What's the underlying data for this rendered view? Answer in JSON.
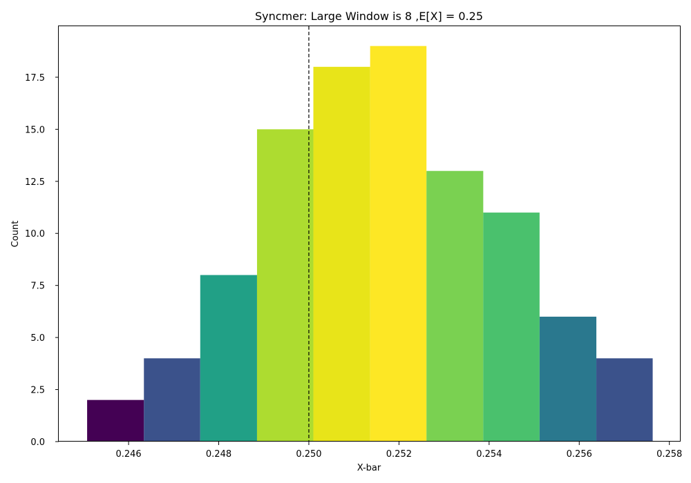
{
  "chart_data": {
    "type": "histogram",
    "title": "Syncmer: Large Window is 8 ,E[X] = 0.25",
    "xlabel": "X-bar",
    "ylabel": "Count",
    "xlim": [
      0.24445,
      0.25825
    ],
    "ylim": [
      0,
      19.95
    ],
    "xticks": [
      {
        "value": 0.246,
        "label": "0.246"
      },
      {
        "value": 0.248,
        "label": "0.248"
      },
      {
        "value": 0.25,
        "label": "0.250"
      },
      {
        "value": 0.252,
        "label": "0.252"
      },
      {
        "value": 0.254,
        "label": "0.254"
      },
      {
        "value": 0.256,
        "label": "0.256"
      },
      {
        "value": 0.258,
        "label": "0.258"
      }
    ],
    "yticks": [
      {
        "value": 0,
        "label": "0.0"
      },
      {
        "value": 2.5,
        "label": "2.5"
      },
      {
        "value": 5,
        "label": "5.0"
      },
      {
        "value": 7.5,
        "label": "7.5"
      },
      {
        "value": 10,
        "label": "10.0"
      },
      {
        "value": 12.5,
        "label": "12.5"
      },
      {
        "value": 15,
        "label": "15.0"
      },
      {
        "value": 17.5,
        "label": "17.5"
      }
    ],
    "bins": [
      {
        "x0": 0.24508,
        "x1": 0.24634,
        "count": 2,
        "color": "#440154"
      },
      {
        "x0": 0.24634,
        "x1": 0.24759,
        "count": 4,
        "color": "#3b528b"
      },
      {
        "x0": 0.24759,
        "x1": 0.24885,
        "count": 8,
        "color": "#21a086"
      },
      {
        "x0": 0.24885,
        "x1": 0.2501,
        "count": 15,
        "color": "#addc30"
      },
      {
        "x0": 0.2501,
        "x1": 0.25136,
        "count": 18,
        "color": "#e8e419"
      },
      {
        "x0": 0.25136,
        "x1": 0.25261,
        "count": 19,
        "color": "#fde725"
      },
      {
        "x0": 0.25261,
        "x1": 0.25387,
        "count": 13,
        "color": "#7ad151"
      },
      {
        "x0": 0.25387,
        "x1": 0.25512,
        "count": 11,
        "color": "#4ac16d"
      },
      {
        "x0": 0.25512,
        "x1": 0.25638,
        "count": 6,
        "color": "#2a788e"
      },
      {
        "x0": 0.25638,
        "x1": 0.25763,
        "count": 4,
        "color": "#3b528b"
      }
    ],
    "reference_line": {
      "x": 0.25,
      "style": "dashed",
      "color": "#000000"
    },
    "grid": false,
    "legend": "none"
  }
}
